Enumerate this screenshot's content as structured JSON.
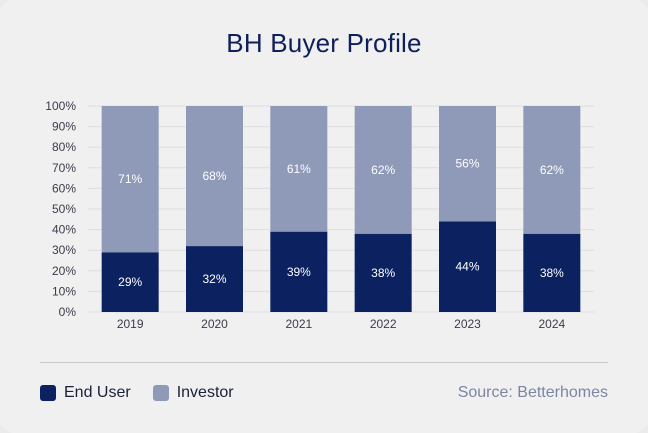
{
  "title": "BH Buyer Profile",
  "source": "Source: Betterhomes",
  "legend": [
    {
      "label": "End User",
      "color": "#0b2160"
    },
    {
      "label": "Investor",
      "color": "#8f9ab8"
    }
  ],
  "chart_data": {
    "type": "bar",
    "stacked": true,
    "categories": [
      "2019",
      "2020",
      "2021",
      "2022",
      "2023",
      "2024"
    ],
    "series": [
      {
        "name": "End User",
        "color": "#0b2160",
        "values": [
          29,
          32,
          39,
          38,
          44,
          38
        ],
        "labels": [
          "29%",
          "32%",
          "39%",
          "38%",
          "44%",
          "38%"
        ]
      },
      {
        "name": "Investor",
        "color": "#8f9ab8",
        "values": [
          71,
          68,
          61,
          62,
          56,
          62
        ],
        "labels": [
          "71%",
          "68%",
          "61%",
          "62%",
          "56%",
          "62%"
        ]
      }
    ],
    "y_ticks": [
      "0%",
      "10%",
      "20%",
      "30%",
      "40%",
      "50%",
      "60%",
      "70%",
      "80%",
      "90%",
      "100%"
    ],
    "ylim": [
      0,
      100
    ],
    "grid": true,
    "legend_position": "bottom-left"
  }
}
